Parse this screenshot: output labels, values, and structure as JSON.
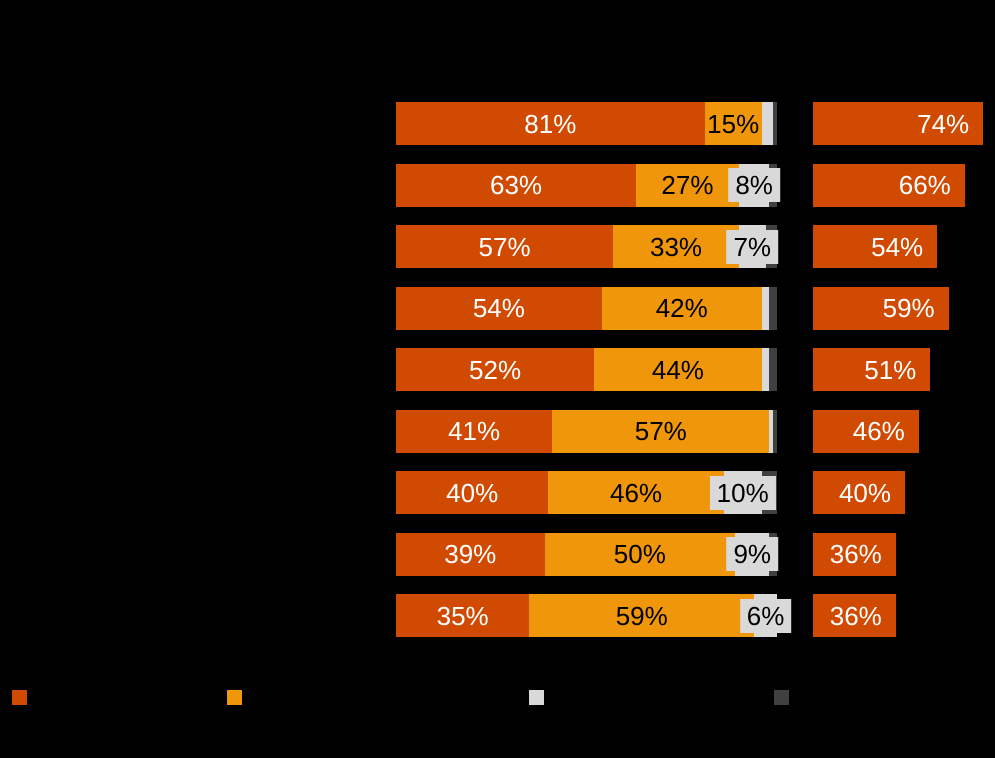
{
  "chart_data": {
    "type": "bar",
    "orientation": "horizontal",
    "stacked": true,
    "background_color": "#000000",
    "axis_max": 100,
    "grid": false,
    "rows_count": 9,
    "series": [
      {
        "name": "dark-orange-segment",
        "color": "#D04A02",
        "text_color": "#FFFFFF",
        "values": [
          81,
          63,
          57,
          54,
          52,
          41,
          40,
          39,
          35
        ],
        "labels": [
          "81%",
          "63%",
          "57%",
          "54%",
          "52%",
          "41%",
          "40%",
          "39%",
          "35%"
        ]
      },
      {
        "name": "amber-segment",
        "color": "#F0960A",
        "text_color": "#000000",
        "values": [
          15,
          27,
          33,
          42,
          44,
          57,
          46,
          50,
          59
        ],
        "labels": [
          "15%",
          "27%",
          "33%",
          "42%",
          "44%",
          "57%",
          "46%",
          "50%",
          "59%"
        ]
      },
      {
        "name": "light-gray-segment",
        "color": "#D9D9D9",
        "text_color": "#000000",
        "values": [
          3,
          8,
          7,
          2,
          2,
          1,
          10,
          9,
          6
        ],
        "labels": [
          null,
          "8%",
          "7%",
          null,
          null,
          null,
          "10%",
          "9%",
          "6%"
        ]
      },
      {
        "name": "dark-gray-segment",
        "color": "#404040",
        "text_color": "#FFFFFF",
        "values": [
          1,
          2,
          3,
          2,
          2,
          1,
          4,
          2,
          0
        ],
        "labels": [
          null,
          null,
          null,
          null,
          null,
          null,
          null,
          null,
          null
        ]
      }
    ],
    "right_column": {
      "name": "right-single-bar-column",
      "color": "#D04A02",
      "text_color": "#FFFFFF",
      "values": [
        74,
        66,
        54,
        59,
        51,
        46,
        40,
        36,
        36
      ],
      "labels": [
        "74%",
        "66%",
        "54%",
        "59%",
        "51%",
        "46%",
        "40%",
        "36%",
        "36%"
      ]
    },
    "legend": {
      "swatch_colors": [
        "#D04A02",
        "#F0960A",
        "#D9D9D9",
        "#404040"
      ],
      "swatch_x_positions": [
        12,
        227,
        529,
        774
      ]
    }
  }
}
